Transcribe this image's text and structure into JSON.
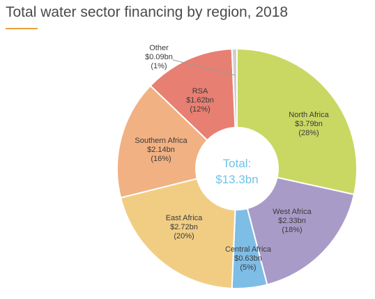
{
  "title": "Total water sector financing by region, 2018",
  "colors": {
    "accent": "#e8a33c",
    "title_text": "#4a4a4a",
    "slice_border": "#ffffff",
    "center_text": "#6fc4e8"
  },
  "chart_data": {
    "type": "pie",
    "donut": true,
    "title": "Total water sector financing by region, 2018",
    "center_label": {
      "line1": "Total:",
      "line2": "$13.3bn"
    },
    "slices": [
      {
        "label": "North Africa",
        "value_text": "$3.79bn",
        "pct_text": "(28%)",
        "value": 3.79,
        "color": "#c9d863"
      },
      {
        "label": "West Africa",
        "value_text": "$2.33bn",
        "pct_text": "(18%)",
        "value": 2.33,
        "color": "#a99bc8"
      },
      {
        "label": "Central Africa",
        "value_text": "$0.63bn",
        "pct_text": "(5%)",
        "value": 0.63,
        "color": "#7dbde6"
      },
      {
        "label": "East Africa",
        "value_text": "$2.72bn",
        "pct_text": "(20%)",
        "value": 2.72,
        "color": "#f1cd84"
      },
      {
        "label": "Southern Africa",
        "value_text": "$2.14bn",
        "pct_text": "(16%)",
        "value": 2.14,
        "color": "#f1b183"
      },
      {
        "label": "RSA",
        "value_text": "$1.62bn",
        "pct_text": "(12%)",
        "value": 1.62,
        "color": "#e77f73"
      },
      {
        "label": "Other",
        "value_text": "$0.09bn",
        "pct_text": "(1%)",
        "value": 0.09,
        "color": "#cfcfcf"
      }
    ]
  }
}
